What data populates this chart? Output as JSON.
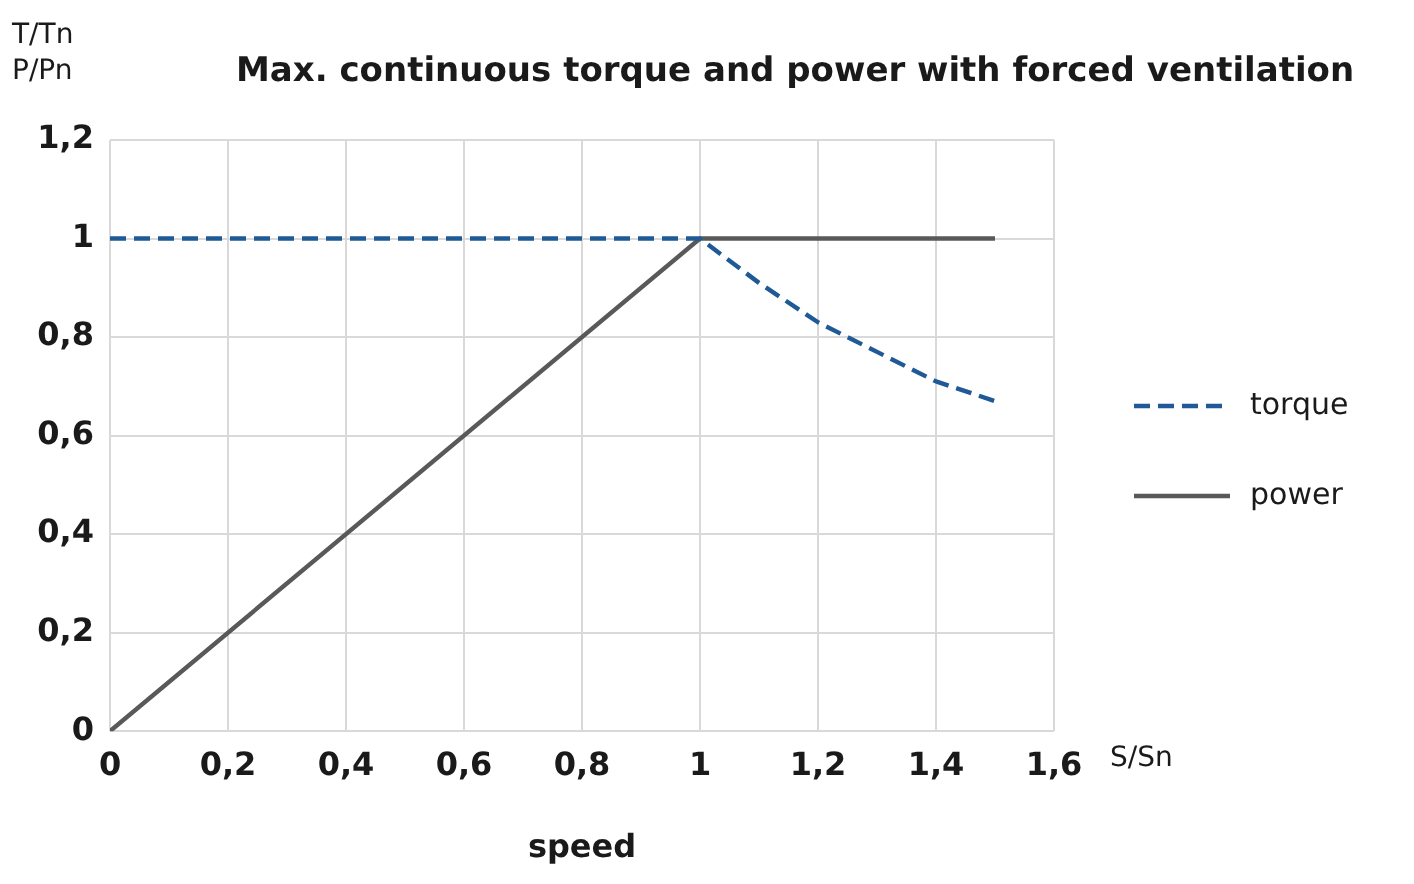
{
  "chart_data": {
    "type": "line",
    "title": "Max. continuous torque and power with forced ventilation",
    "xlabel": "speed",
    "ylabel": "T/Tn\nP/Pn",
    "annotations": [
      "S/Sn"
    ],
    "series": [
      {
        "name": "torque",
        "color": "#1f5a96",
        "line_style": "dashed",
        "x": [
          0,
          1,
          1.1,
          1.2,
          1.3,
          1.4,
          1.5
        ],
        "values": [
          1,
          1,
          0.91,
          0.83,
          0.77,
          0.71,
          0.67
        ]
      },
      {
        "name": "power",
        "color": "#595959",
        "line_style": "solid",
        "x": [
          0,
          1,
          1.5
        ],
        "values": [
          0,
          1,
          1
        ]
      }
    ],
    "xlim": [
      0,
      1.6
    ],
    "xticks": [
      0,
      {
        "value": 0.2,
        "label": "0,2"
      },
      {
        "value": 0.4,
        "label": "0,4"
      },
      {
        "value": 0.6,
        "label": "0,6"
      },
      {
        "value": 0.8,
        "label": "0,8"
      },
      1,
      {
        "value": 1.2,
        "label": "1,2"
      },
      {
        "value": 1.4,
        "label": "1,4"
      },
      {
        "value": 1.6,
        "label": "1,6"
      }
    ],
    "ylim": [
      0,
      1.2
    ],
    "yticks": [
      0,
      {
        "value": 0.2,
        "label": "0,2"
      },
      {
        "value": 0.4,
        "label": "0,4"
      },
      {
        "value": 0.6,
        "label": "0,6"
      },
      {
        "value": 0.8,
        "label": "0,8"
      },
      1,
      {
        "value": 1.2,
        "label": "1,2"
      }
    ],
    "grid": true,
    "legend": "right",
    "marker": "none"
  }
}
